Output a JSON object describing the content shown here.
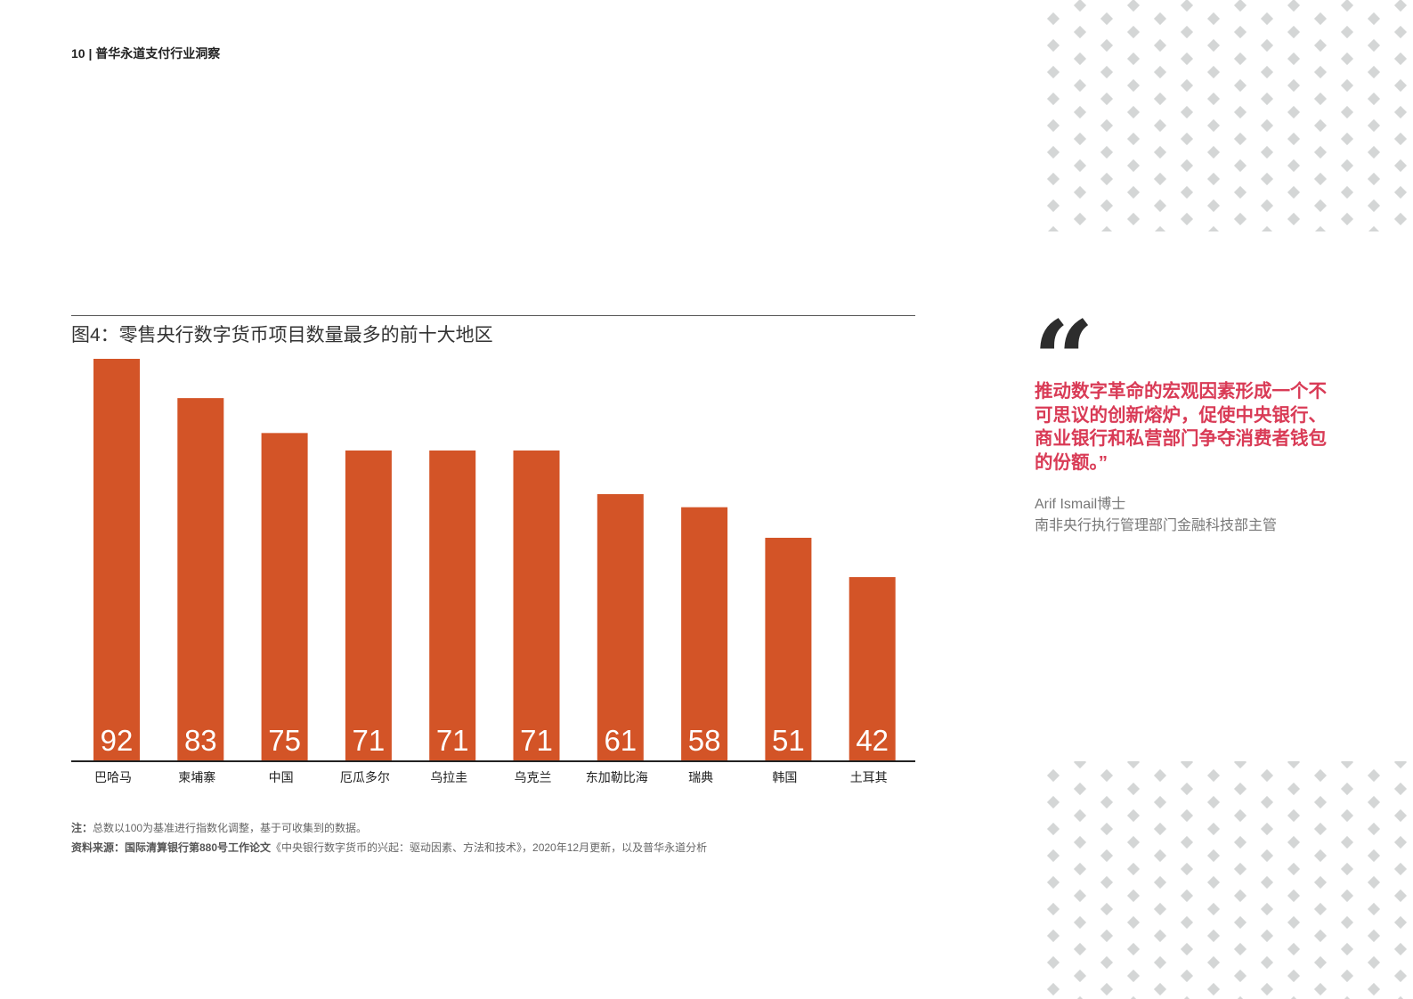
{
  "header": {
    "page_number": "10",
    "separator": "|",
    "publication": "普华永道支付行业洞察"
  },
  "chart_data": {
    "type": "bar",
    "title": "图4：零售央行数字货币项目数量最多的前十大地区",
    "categories": [
      "巴哈马",
      "柬埔寨",
      "中国",
      "厄瓜多尔",
      "乌拉圭",
      "乌克兰",
      "东加勒比海",
      "瑞典",
      "韩国",
      "土耳其"
    ],
    "values": [
      92,
      83,
      75,
      71,
      71,
      71,
      61,
      58,
      51,
      42
    ],
    "data_labels": "inside-bottom",
    "ylim": [
      0,
      100
    ],
    "grid": false,
    "bar_color": "#d35427"
  },
  "notes": {
    "note_label": "注：",
    "note_text": "总数以100为基准进行指数化调整，基于可收集到的数据。",
    "source_label": "资料来源：国际清算银行第880号工作论文",
    "source_text": "《中央银行数字货币的兴起：驱动因素、方法和技术》，2020年12月更新，以及普华永道分析"
  },
  "quote": {
    "text": "推动数字革命的宏观因素形成一个不可思议的创新熔炉，促使中央银行、商业银行和私营部门争夺消费者钱包的份额。”",
    "author_name": "Arif Ismail博士",
    "author_title": "南非央行执行管理部门金融科技部主管",
    "accent_color": "#d93b56"
  },
  "decoration": {
    "pattern": "diamond-dots",
    "color": "#d4d6d6"
  }
}
